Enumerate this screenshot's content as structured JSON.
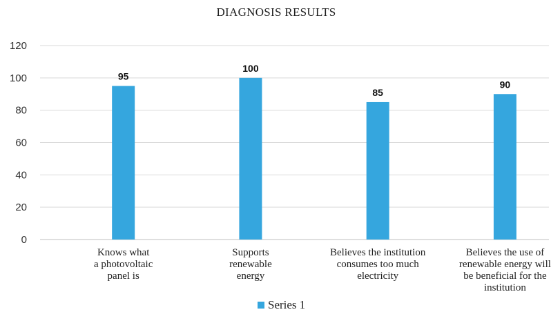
{
  "chart_data": {
    "type": "bar",
    "title": "DIAGNOSIS RESULTS",
    "categories": [
      [
        "Knows what",
        "a photovoltaic",
        "panel is"
      ],
      [
        "Supports",
        "renewable",
        "energy"
      ],
      [
        "Believes the institution",
        "consumes too much",
        "electricity"
      ],
      [
        "Believes the use of",
        "renewable energy will",
        "be beneficial for the",
        "institution"
      ]
    ],
    "series": [
      {
        "name": "Series 1",
        "values": [
          95,
          100,
          85,
          90
        ],
        "color": "#35a6de"
      }
    ],
    "data_labels": [
      "95",
      "100",
      "85",
      "90"
    ],
    "y_ticks": [
      "0",
      "20",
      "40",
      "60",
      "80",
      "100",
      "120"
    ],
    "ylim": [
      0,
      120
    ],
    "xlabel": "",
    "ylabel": "",
    "grid": true,
    "legend": "bottom"
  }
}
